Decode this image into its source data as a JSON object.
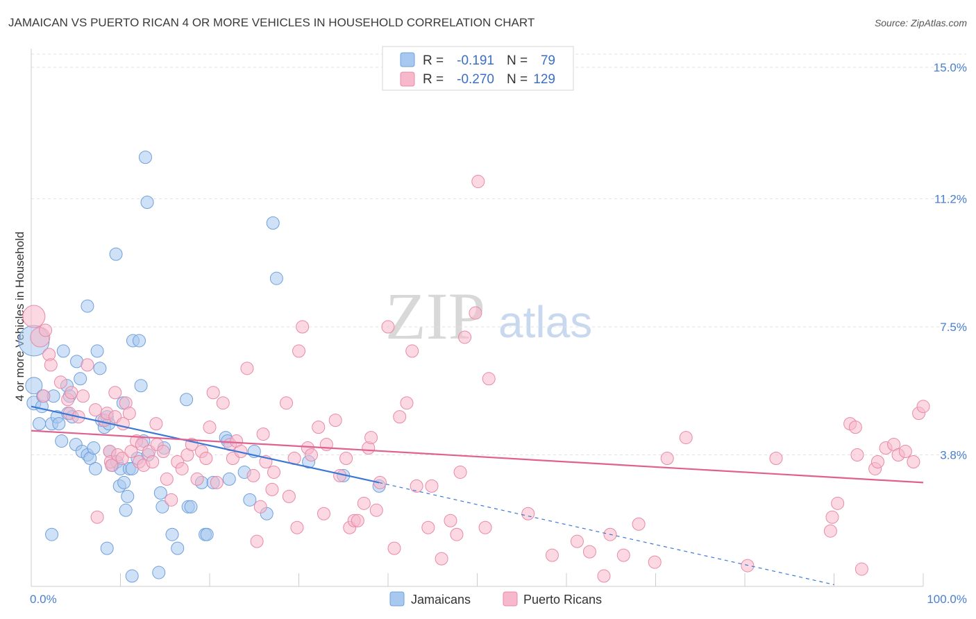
{
  "title": "JAMAICAN VS PUERTO RICAN 4 OR MORE VEHICLES IN HOUSEHOLD CORRELATION CHART",
  "source": "Source: ZipAtlas.com",
  "watermark": {
    "zip": "ZIP",
    "atlas": "atlas"
  },
  "legend": {
    "rows": [
      {
        "r_label": "R =",
        "r_value": "-0.191",
        "n_label": "N =",
        "n_value": "79",
        "color": "#a8c8f0",
        "stroke": "#6f9fdc"
      },
      {
        "r_label": "R =",
        "r_value": "-0.270",
        "n_label": "N =",
        "n_value": "129",
        "color": "#f7b8cb",
        "stroke": "#e889a8"
      }
    ]
  },
  "bottom_legend": [
    {
      "label": "Jamaicans",
      "color": "#a8c8f0",
      "stroke": "#6f9fdc"
    },
    {
      "label": "Puerto Ricans",
      "color": "#f7b8cb",
      "stroke": "#e889a8"
    }
  ],
  "chart_data": {
    "type": "scatter",
    "title": "JAMAICAN VS PUERTO RICAN 4 OR MORE VEHICLES IN HOUSEHOLD CORRELATION CHART",
    "xlabel": "",
    "ylabel": "4 or more Vehicles in Household",
    "xlim": [
      0,
      100
    ],
    "ylim": [
      0,
      15.5
    ],
    "x_tick_labels": [
      "0.0%",
      "100.0%"
    ],
    "y_ticks": [
      3.8,
      7.5,
      11.2,
      15.0
    ],
    "y_tick_labels": [
      "3.8%",
      "7.5%",
      "11.2%",
      "15.0%"
    ],
    "grid": true,
    "legend_position": "top-center",
    "series": [
      {
        "name": "Jamaicans",
        "color": "#a8c8f0",
        "stroke": "#6f9fdc",
        "trend": {
          "x": [
            0,
            39
          ],
          "y": [
            5.2,
            3.0
          ],
          "dashed_to_x": 90,
          "dashed_to_y": 0.05,
          "color": "#3a78d4"
        },
        "points": [
          [
            0.3,
            7.1,
            22
          ],
          [
            0.3,
            5.8,
            12
          ],
          [
            0.3,
            5.3,
            10
          ],
          [
            0.9,
            4.7,
            9
          ],
          [
            1.2,
            5.2,
            9
          ],
          [
            1.3,
            5.5,
            9
          ],
          [
            2.3,
            4.7,
            9
          ],
          [
            2.3,
            1.5,
            9
          ],
          [
            2.5,
            5.5,
            9
          ],
          [
            2.9,
            4.9,
            9
          ],
          [
            3.1,
            4.7,
            9
          ],
          [
            3.4,
            4.2,
            9
          ],
          [
            3.6,
            6.8,
            9
          ],
          [
            4.0,
            5.8,
            9
          ],
          [
            4.1,
            5.0,
            9
          ],
          [
            4.3,
            5.5,
            9
          ],
          [
            4.6,
            4.9,
            9
          ],
          [
            5.0,
            4.1,
            9
          ],
          [
            5.1,
            6.5,
            9
          ],
          [
            5.5,
            6.0,
            9
          ],
          [
            5.7,
            3.9,
            9
          ],
          [
            6.3,
            8.1,
            9
          ],
          [
            6.3,
            3.8,
            9
          ],
          [
            6.6,
            3.7,
            9
          ],
          [
            7.0,
            4.0,
            9
          ],
          [
            7.2,
            3.4,
            9
          ],
          [
            7.4,
            6.8,
            9
          ],
          [
            7.7,
            6.3,
            9
          ],
          [
            7.9,
            4.8,
            9
          ],
          [
            8.2,
            4.6,
            9
          ],
          [
            8.5,
            4.9,
            9
          ],
          [
            8.5,
            1.1,
            9
          ],
          [
            8.7,
            4.7,
            9
          ],
          [
            8.8,
            3.9,
            9
          ],
          [
            9.1,
            3.5,
            9
          ],
          [
            9.5,
            9.6,
            9
          ],
          [
            9.6,
            3.6,
            9
          ],
          [
            9.9,
            2.9,
            9
          ],
          [
            10.0,
            3.4,
            9
          ],
          [
            10.3,
            5.3,
            9
          ],
          [
            10.4,
            3.0,
            9
          ],
          [
            10.6,
            2.2,
            9
          ],
          [
            10.8,
            2.6,
            9
          ],
          [
            11.0,
            3.4,
            9
          ],
          [
            11.3,
            0.3,
            9
          ],
          [
            11.3,
            3.4,
            9
          ],
          [
            11.4,
            7.1,
            9
          ],
          [
            11.9,
            3.7,
            9
          ],
          [
            12.1,
            7.1,
            9
          ],
          [
            12.3,
            5.8,
            9
          ],
          [
            12.6,
            4.2,
            9
          ],
          [
            12.8,
            12.4,
            9
          ],
          [
            13.0,
            11.1,
            9
          ],
          [
            13.1,
            3.8,
            9
          ],
          [
            14.3,
            0.4,
            9
          ],
          [
            14.5,
            2.7,
            9
          ],
          [
            14.7,
            2.3,
            9
          ],
          [
            14.9,
            4.0,
            9
          ],
          [
            15.8,
            1.5,
            9
          ],
          [
            16.4,
            1.1,
            9
          ],
          [
            17.4,
            5.4,
            9
          ],
          [
            17.6,
            2.3,
            9
          ],
          [
            17.9,
            2.3,
            9
          ],
          [
            19.1,
            3.0,
            9
          ],
          [
            19.5,
            1.5,
            9
          ],
          [
            19.7,
            1.5,
            9
          ],
          [
            20.4,
            3.0,
            9
          ],
          [
            21.8,
            4.3,
            9
          ],
          [
            22.0,
            4.2,
            9
          ],
          [
            22.2,
            3.1,
            9
          ],
          [
            23.9,
            3.3,
            9
          ],
          [
            24.5,
            2.5,
            9
          ],
          [
            25.0,
            3.9,
            9
          ],
          [
            26.4,
            2.1,
            9
          ],
          [
            27.1,
            10.5,
            9
          ],
          [
            27.5,
            8.9,
            9
          ],
          [
            31.1,
            3.6,
            9
          ],
          [
            35.0,
            3.2,
            9
          ],
          [
            39.0,
            2.9,
            9
          ]
        ]
      },
      {
        "name": "Puerto Ricans",
        "color": "#f7b8cb",
        "stroke": "#e889a8",
        "trend": {
          "x": [
            0,
            100
          ],
          "y": [
            4.5,
            3.0
          ],
          "color": "#e0608f"
        },
        "points": [
          [
            0.3,
            7.8,
            16
          ],
          [
            1.0,
            7.2,
            14
          ],
          [
            1.4,
            5.5,
            9
          ],
          [
            1.6,
            7.4,
            9
          ],
          [
            2.0,
            6.7,
            9
          ],
          [
            2.2,
            6.4,
            9
          ],
          [
            3.3,
            5.9,
            9
          ],
          [
            4.1,
            5.4,
            9
          ],
          [
            4.3,
            5.0,
            9
          ],
          [
            4.5,
            5.6,
            9
          ],
          [
            5.3,
            4.9,
            9
          ],
          [
            5.8,
            5.5,
            9
          ],
          [
            6.3,
            6.4,
            9
          ],
          [
            7.2,
            5.1,
            9
          ],
          [
            7.4,
            2.0,
            9
          ],
          [
            8.2,
            4.8,
            9
          ],
          [
            8.5,
            5.0,
            9
          ],
          [
            8.8,
            3.9,
            9
          ],
          [
            8.9,
            3.6,
            9
          ],
          [
            9.0,
            3.5,
            9
          ],
          [
            9.4,
            4.9,
            9
          ],
          [
            9.4,
            5.6,
            9
          ],
          [
            9.7,
            3.8,
            9
          ],
          [
            10.2,
            3.7,
            9
          ],
          [
            10.3,
            4.7,
            9
          ],
          [
            10.6,
            5.3,
            9
          ],
          [
            11.0,
            5.0,
            9
          ],
          [
            11.2,
            3.9,
            9
          ],
          [
            11.8,
            4.2,
            9
          ],
          [
            12.1,
            3.6,
            9
          ],
          [
            12.4,
            4.1,
            9
          ],
          [
            12.6,
            3.5,
            9
          ],
          [
            13.2,
            3.9,
            9
          ],
          [
            13.6,
            3.6,
            9
          ],
          [
            14.0,
            4.7,
            9
          ],
          [
            14.1,
            4.1,
            9
          ],
          [
            14.8,
            3.9,
            9
          ],
          [
            15.2,
            3.1,
            9
          ],
          [
            15.7,
            2.5,
            9
          ],
          [
            16.4,
            3.6,
            9
          ],
          [
            16.9,
            3.4,
            9
          ],
          [
            17.5,
            3.8,
            9
          ],
          [
            18.0,
            4.1,
            9
          ],
          [
            18.6,
            3.1,
            9
          ],
          [
            19.1,
            3.9,
            9
          ],
          [
            19.6,
            3.7,
            9
          ],
          [
            20.0,
            4.6,
            9
          ],
          [
            20.4,
            5.6,
            9
          ],
          [
            20.8,
            3.0,
            9
          ],
          [
            21.5,
            5.3,
            9
          ],
          [
            22.3,
            4.1,
            9
          ],
          [
            22.6,
            3.7,
            9
          ],
          [
            23.0,
            4.2,
            9
          ],
          [
            23.5,
            3.9,
            9
          ],
          [
            24.2,
            6.3,
            9
          ],
          [
            24.9,
            3.2,
            9
          ],
          [
            25.3,
            1.3,
            9
          ],
          [
            25.7,
            2.3,
            9
          ],
          [
            26.0,
            4.4,
            9
          ],
          [
            26.3,
            3.6,
            9
          ],
          [
            27.0,
            2.8,
            9
          ],
          [
            27.2,
            3.3,
            9
          ],
          [
            28.6,
            5.3,
            9
          ],
          [
            28.9,
            2.6,
            9
          ],
          [
            29.5,
            3.7,
            9
          ],
          [
            29.8,
            1.7,
            9
          ],
          [
            30.0,
            6.8,
            9
          ],
          [
            30.4,
            7.5,
            9
          ],
          [
            31.0,
            4.0,
            9
          ],
          [
            31.4,
            3.8,
            9
          ],
          [
            32.2,
            4.6,
            9
          ],
          [
            32.8,
            2.1,
            9
          ],
          [
            33.1,
            4.1,
            9
          ],
          [
            34.1,
            4.8,
            9
          ],
          [
            34.6,
            3.2,
            9
          ],
          [
            35.3,
            3.7,
            9
          ],
          [
            35.7,
            1.7,
            9
          ],
          [
            36.2,
            1.9,
            9
          ],
          [
            36.6,
            1.9,
            9
          ],
          [
            37.3,
            2.4,
            9
          ],
          [
            37.8,
            4.0,
            9
          ],
          [
            38.1,
            4.3,
            9
          ],
          [
            38.7,
            2.2,
            9
          ],
          [
            39.1,
            3.0,
            9
          ],
          [
            40.0,
            7.5,
            9
          ],
          [
            40.7,
            1.1,
            9
          ],
          [
            41.3,
            4.9,
            9
          ],
          [
            42.1,
            5.3,
            9
          ],
          [
            42.7,
            6.8,
            9
          ],
          [
            43.2,
            2.9,
            9
          ],
          [
            44.5,
            1.7,
            9
          ],
          [
            44.9,
            2.9,
            9
          ],
          [
            46.0,
            0.8,
            9
          ],
          [
            47.0,
            1.9,
            9
          ],
          [
            47.7,
            1.5,
            9
          ],
          [
            48.1,
            3.3,
            9
          ],
          [
            48.6,
            7.2,
            9
          ],
          [
            49.8,
            7.9,
            9
          ],
          [
            50.1,
            11.7,
            9
          ],
          [
            50.9,
            1.7,
            9
          ],
          [
            51.3,
            6.0,
            9
          ],
          [
            55.7,
            2.1,
            9
          ],
          [
            58.4,
            0.9,
            9
          ],
          [
            61.2,
            1.3,
            9
          ],
          [
            62.6,
            1.0,
            9
          ],
          [
            64.2,
            0.3,
            9
          ],
          [
            64.9,
            1.5,
            9
          ],
          [
            66.4,
            0.9,
            9
          ],
          [
            68.1,
            1.8,
            9
          ],
          [
            69.9,
            0.7,
            9
          ],
          [
            71.3,
            3.7,
            9
          ],
          [
            73.4,
            4.3,
            9
          ],
          [
            80.3,
            0.6,
            9
          ],
          [
            83.5,
            3.7,
            9
          ],
          [
            89.6,
            1.6,
            9
          ],
          [
            89.8,
            2.0,
            9
          ],
          [
            90.4,
            2.4,
            9
          ],
          [
            91.8,
            4.7,
            9
          ],
          [
            92.4,
            4.6,
            9
          ],
          [
            92.6,
            3.8,
            9
          ],
          [
            93.1,
            0.5,
            9
          ],
          [
            94.6,
            3.4,
            9
          ],
          [
            94.9,
            3.6,
            9
          ],
          [
            95.8,
            4.0,
            9
          ],
          [
            96.7,
            4.1,
            9
          ],
          [
            97.2,
            3.8,
            9
          ],
          [
            98.0,
            3.9,
            9
          ],
          [
            98.9,
            3.6,
            9
          ],
          [
            99.5,
            5.0,
            9
          ],
          [
            100.0,
            5.2,
            9
          ]
        ]
      }
    ]
  }
}
